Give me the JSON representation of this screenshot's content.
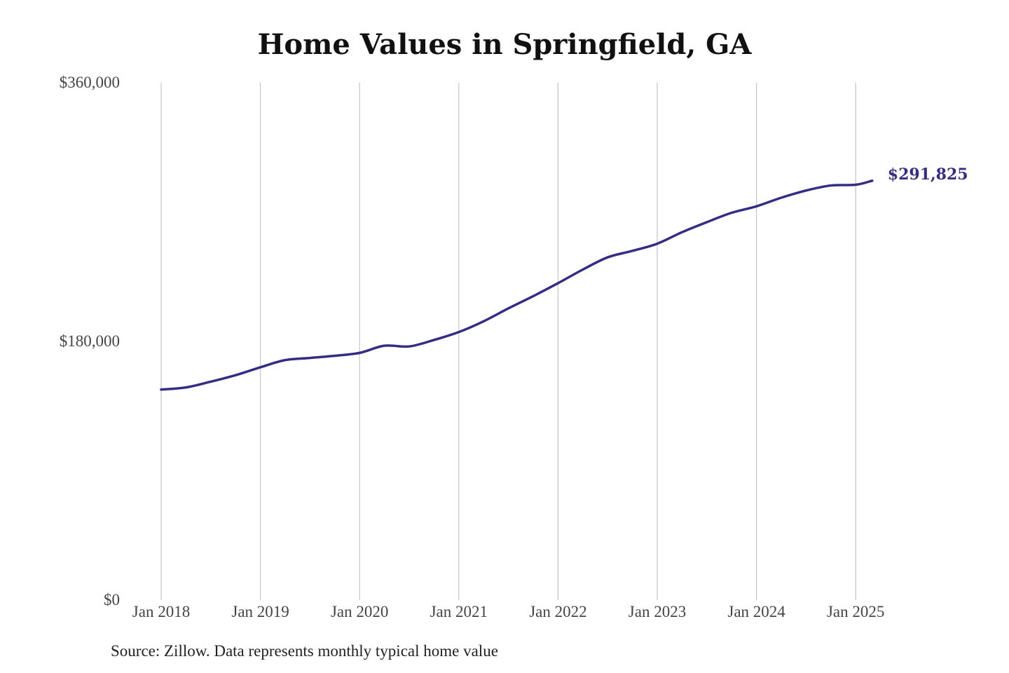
{
  "chart_data": {
    "type": "line",
    "title": "Home Values in Springfield, GA",
    "source": "Source: Zillow. Data represents monthly typical home value",
    "xlabel": "",
    "ylabel": "",
    "ylim": [
      0,
      360000
    ],
    "y_ticks": [
      {
        "value": 0,
        "label": "$0"
      },
      {
        "value": 180000,
        "label": "$180,000"
      },
      {
        "value": 360000,
        "label": "$360,000"
      }
    ],
    "x_ticks": [
      {
        "date": "2018-01",
        "label": "Jan 2018"
      },
      {
        "date": "2019-01",
        "label": "Jan 2019"
      },
      {
        "date": "2020-01",
        "label": "Jan 2020"
      },
      {
        "date": "2021-01",
        "label": "Jan 2021"
      },
      {
        "date": "2022-01",
        "label": "Jan 2022"
      },
      {
        "date": "2023-01",
        "label": "Jan 2023"
      },
      {
        "date": "2024-01",
        "label": "Jan 2024"
      },
      {
        "date": "2025-01",
        "label": "Jan 2025"
      }
    ],
    "xlim": [
      "2018-01",
      "2025-03"
    ],
    "grid": {
      "vertical": true,
      "horizontal": false
    },
    "line_color": "#352d85",
    "end_label": "$291,825",
    "series": [
      {
        "name": "",
        "points": [
          {
            "date": "2018-01",
            "value": 146500
          },
          {
            "date": "2018-04",
            "value": 148000
          },
          {
            "date": "2018-07",
            "value": 152000
          },
          {
            "date": "2018-10",
            "value": 156500
          },
          {
            "date": "2019-01",
            "value": 162000
          },
          {
            "date": "2019-04",
            "value": 167000
          },
          {
            "date": "2019-07",
            "value": 168500
          },
          {
            "date": "2019-10",
            "value": 170000
          },
          {
            "date": "2020-01",
            "value": 172000
          },
          {
            "date": "2020-04",
            "value": 177000
          },
          {
            "date": "2020-07",
            "value": 176500
          },
          {
            "date": "2020-10",
            "value": 181000
          },
          {
            "date": "2021-01",
            "value": 186500
          },
          {
            "date": "2021-04",
            "value": 194000
          },
          {
            "date": "2021-07",
            "value": 203000
          },
          {
            "date": "2021-10",
            "value": 211500
          },
          {
            "date": "2022-01",
            "value": 220500
          },
          {
            "date": "2022-04",
            "value": 230000
          },
          {
            "date": "2022-07",
            "value": 238500
          },
          {
            "date": "2022-10",
            "value": 243000
          },
          {
            "date": "2023-01",
            "value": 248000
          },
          {
            "date": "2023-04",
            "value": 256000
          },
          {
            "date": "2023-07",
            "value": 263000
          },
          {
            "date": "2023-10",
            "value": 269500
          },
          {
            "date": "2024-01",
            "value": 274000
          },
          {
            "date": "2024-04",
            "value": 280000
          },
          {
            "date": "2024-07",
            "value": 285000
          },
          {
            "date": "2024-10",
            "value": 288500
          },
          {
            "date": "2025-01",
            "value": 289000
          },
          {
            "date": "2025-03",
            "value": 291825
          }
        ]
      }
    ]
  }
}
